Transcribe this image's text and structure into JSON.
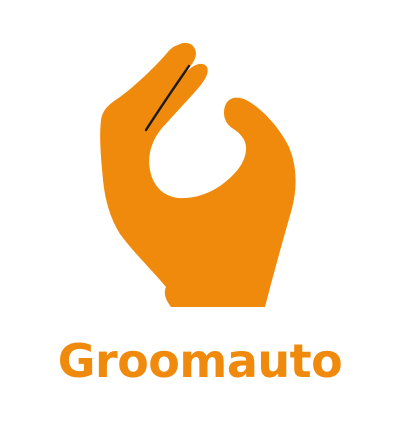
{
  "brand": {
    "name": "Groomauto",
    "icon": "hand-gesture-logo-icon",
    "colors": {
      "primary": "#f08a0c",
      "outline": "#1a1a1a",
      "background": "#ffffff"
    }
  }
}
